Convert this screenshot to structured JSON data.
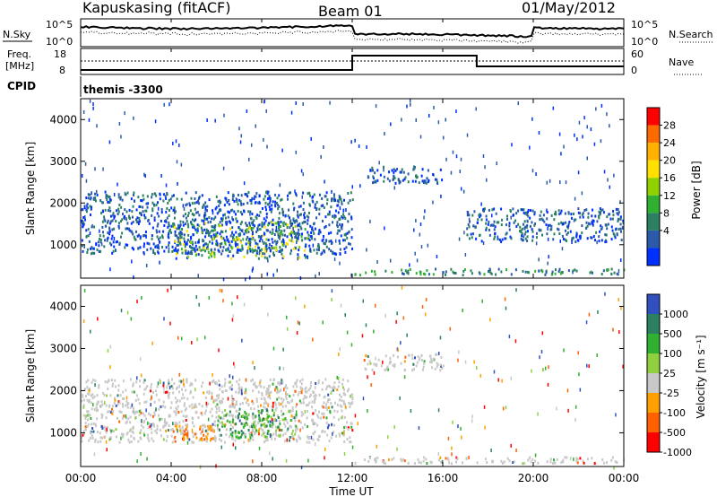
{
  "header": {
    "station": "Kapuskasing (fitACF)",
    "beam": "Beam 01",
    "date": "01/May/2012"
  },
  "panels": {
    "nsky_label": "N.Sky",
    "nsearch_label": "N.Search",
    "noise_ticks": [
      "10^5",
      "10^0"
    ],
    "freq_label": "Freq.",
    "freq_unit": "[MHz]",
    "freq_ticks": [
      "18",
      "8"
    ],
    "nave_label": "Nave",
    "nave_ticks": [
      "60",
      "0"
    ],
    "cpid_label": "CPID",
    "cpid_value": "themis -3300"
  },
  "colorbars": {
    "power": {
      "label": "Power [dB]",
      "ticks": [
        "28",
        "24",
        "20",
        "16",
        "12",
        "8",
        "4"
      ],
      "colors": [
        "#ff0000",
        "#ff6a00",
        "#ffb000",
        "#ffe000",
        "#90d000",
        "#30b030",
        "#2a8060",
        "#2a5aa8",
        "#0030ff"
      ]
    },
    "velocity": {
      "label": "Velocity [m s⁻¹]",
      "ticks": [
        "1000",
        "500",
        "100",
        "25",
        "-25",
        "-100",
        "-500",
        "-1000"
      ],
      "colors": [
        "#3050c0",
        "#2a8060",
        "#30b030",
        "#90d040",
        "#c8c8c8",
        "#ffa000",
        "#ff6000",
        "#ff0000"
      ]
    }
  },
  "chart_data": {
    "type": "heatmap",
    "xlabel": "Time UT",
    "x_ticks": [
      "00:00",
      "04:00",
      "08:00",
      "12:00",
      "16:00",
      "20:00",
      "00:00"
    ],
    "ylabel": "Slant Range [km]",
    "y_ticks": [
      1000,
      2000,
      3000,
      4000
    ],
    "ylim": [
      200,
      4500
    ],
    "xlim_hours": [
      0,
      24
    ],
    "power_regions": [
      {
        "t0": 0,
        "t1": 12,
        "r0": 800,
        "r1": 2300,
        "level": "low"
      },
      {
        "t0": 4,
        "t1": 10,
        "r0": 700,
        "r1": 1600,
        "level": "high"
      },
      {
        "t0": 12.5,
        "t1": 16,
        "r0": 2500,
        "r1": 2900,
        "level": "low"
      },
      {
        "t0": 17,
        "t1": 24,
        "r0": 1100,
        "r1": 1900,
        "level": "low"
      },
      {
        "t0": 12,
        "t1": 24,
        "r0": 300,
        "r1": 450,
        "level": "mid"
      }
    ],
    "velocity_regions": [
      {
        "t0": 0,
        "t1": 12,
        "r0": 800,
        "r1": 2300,
        "vel": "near-zero"
      },
      {
        "t0": 4,
        "t1": 6,
        "r0": 800,
        "r1": 1200,
        "vel": "-100"
      },
      {
        "t0": 6,
        "t1": 9.5,
        "r0": 900,
        "r1": 1600,
        "vel": "100"
      },
      {
        "t0": 12.5,
        "t1": 16,
        "r0": 2500,
        "r1": 2900,
        "vel": "near-zero"
      },
      {
        "t0": 12,
        "t1": 24,
        "r0": 300,
        "r1": 450,
        "vel": "near-zero"
      }
    ]
  }
}
